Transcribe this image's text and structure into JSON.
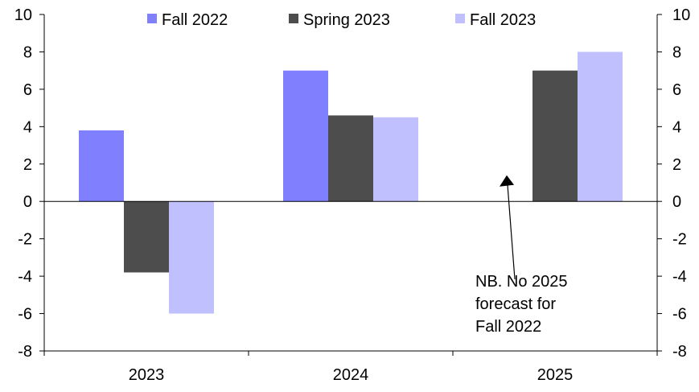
{
  "chart_data": {
    "type": "bar",
    "title": "",
    "xlabel": "",
    "ylabel": "",
    "categories": [
      "2023",
      "2024",
      "2025"
    ],
    "series": [
      {
        "name": "Fall 2022",
        "color": "#8080ff",
        "values": [
          3.8,
          7.0,
          null
        ]
      },
      {
        "name": "Spring 2023",
        "color": "#4d4d4d",
        "values": [
          -3.8,
          4.6,
          7.0
        ]
      },
      {
        "name": "Fall 2023",
        "color": "#c0c0ff",
        "values": [
          -6.0,
          4.5,
          8.0
        ]
      }
    ],
    "ylim": [
      -8,
      10
    ],
    "yticks": [
      -8,
      -6,
      -4,
      -2,
      0,
      2,
      4,
      6,
      8,
      10
    ],
    "y2ticks": [
      -8,
      -6,
      -4,
      -2,
      0,
      2,
      4,
      6,
      8,
      10
    ],
    "grid": false,
    "legend_position": "top",
    "annotation": {
      "lines": [
        "NB. No 2025",
        "forecast for",
        "Fall 2022"
      ],
      "points_to_category": "2025",
      "points_to_value": 1.4
    }
  }
}
